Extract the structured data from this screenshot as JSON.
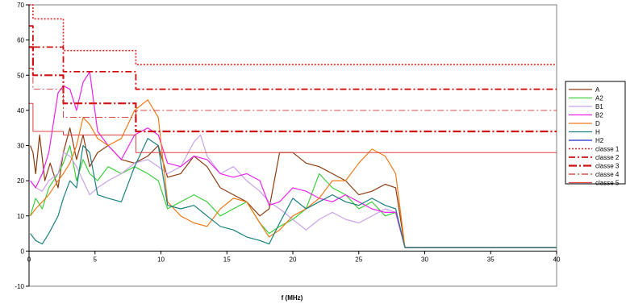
{
  "chart_data": {
    "type": "line",
    "xlabel": "f (MHz)",
    "ylabel": "",
    "xlim": [
      0,
      40
    ],
    "ylim": [
      -10,
      70
    ],
    "x_ticks": [
      "0",
      "5",
      "10",
      "15",
      "20",
      "25",
      "30",
      "35",
      "40"
    ],
    "y_ticks": [
      "-10",
      "0",
      "10",
      "20",
      "30",
      "40",
      "50",
      "60",
      "70"
    ],
    "grid": false,
    "legend_position": "right",
    "series": [
      {
        "name": "A",
        "color": "#8B3A10",
        "style": "solid",
        "x": [
          0.1,
          0.3,
          0.5,
          0.8,
          1.2,
          1.6,
          2.2,
          2.6,
          3.1,
          3.6,
          4.1,
          4.6,
          5.2,
          6.0,
          7.0,
          8.0,
          9.0,
          9.8,
          10.5,
          11.5,
          12.5,
          13.5,
          14.5,
          15.5,
          16.5,
          17.5,
          18.2,
          19.0,
          20.0,
          21.0,
          22.0,
          23.0,
          24.0,
          25.0,
          26.0,
          27.0,
          27.8,
          28.5,
          30,
          35,
          40
        ],
        "y": [
          30,
          28,
          22,
          33,
          20,
          25,
          18,
          28,
          35,
          26,
          33,
          24,
          28,
          30,
          26,
          25,
          27,
          30,
          21,
          22,
          27,
          24,
          18,
          16,
          14,
          10,
          12,
          28,
          28,
          25,
          24,
          22,
          20,
          16,
          17,
          19,
          18,
          1,
          1,
          1,
          1
        ]
      },
      {
        "name": "A2",
        "color": "#3DCF3D",
        "style": "solid",
        "x": [
          0.1,
          0.5,
          1,
          1.5,
          2.2,
          2.6,
          3.1,
          3.6,
          4.1,
          4.6,
          5.2,
          6,
          7,
          8,
          9,
          9.8,
          10.5,
          11.5,
          12.5,
          13.5,
          14.5,
          15.5,
          16.5,
          17.5,
          18.2,
          19,
          20,
          21,
          22,
          23,
          24,
          25,
          26,
          27,
          27.8,
          28.5,
          30,
          35,
          40
        ],
        "y": [
          10,
          15,
          12,
          18,
          22,
          25,
          30,
          20,
          26,
          22,
          20,
          24,
          22,
          24,
          22,
          20,
          12,
          14,
          16,
          14,
          10,
          12,
          14,
          8,
          5,
          7,
          9,
          12,
          22,
          18,
          16,
          12,
          14,
          10,
          11,
          1,
          1,
          1,
          1
        ]
      },
      {
        "name": "B1",
        "color": "#C8A2E8",
        "style": "solid",
        "x": [
          0.1,
          0.5,
          1,
          1.5,
          2.2,
          2.6,
          3.1,
          3.6,
          4.1,
          4.6,
          5.2,
          6,
          7,
          8,
          9,
          9.8,
          10.5,
          11.5,
          12.5,
          13,
          13.5,
          14.5,
          15.5,
          16.5,
          17.5,
          18.2,
          19,
          20,
          21,
          22,
          23,
          24,
          25,
          26,
          27,
          27.8,
          28.5,
          30,
          35,
          40
        ],
        "y": [
          20,
          18,
          17,
          20,
          22,
          28,
          27,
          24,
          20,
          16,
          18,
          20,
          22,
          25,
          26,
          24,
          22,
          24,
          31,
          33,
          27,
          22,
          24,
          20,
          17,
          14,
          12,
          9,
          6,
          9,
          11,
          9,
          8,
          10,
          12,
          11,
          1,
          1,
          1,
          1
        ]
      },
      {
        "name": "B2",
        "color": "#EE22EE",
        "style": "solid",
        "x": [
          0.1,
          0.5,
          1,
          1.5,
          2.2,
          2.6,
          3.1,
          3.6,
          4.1,
          4.6,
          5.2,
          6,
          7,
          8,
          9,
          9.8,
          10.5,
          11.5,
          12.5,
          13.5,
          14.5,
          15.5,
          16.5,
          17.5,
          18.2,
          19,
          20,
          21,
          22,
          23,
          24,
          25,
          26,
          27,
          27.8,
          28.5,
          30,
          35,
          40
        ],
        "y": [
          20,
          18,
          22,
          28,
          45,
          47,
          46,
          40,
          48,
          51,
          34,
          30,
          26,
          33,
          35,
          33,
          25,
          24,
          27,
          26,
          22,
          21,
          22,
          20,
          13,
          14,
          18,
          17,
          15,
          14,
          16,
          14,
          12,
          11,
          11,
          1,
          1,
          1,
          1
        ]
      },
      {
        "name": "D",
        "color": "#F07A1A",
        "style": "solid",
        "x": [
          0.1,
          0.5,
          1,
          1.5,
          2.2,
          2.6,
          3.1,
          3.6,
          4.1,
          4.6,
          5.2,
          6,
          7,
          8,
          9,
          9.8,
          10.5,
          11.5,
          12.5,
          13.5,
          14.5,
          15.5,
          16.5,
          17.5,
          18.2,
          19,
          20,
          21,
          22,
          23,
          24,
          25,
          26,
          27,
          27.8,
          28.5,
          30,
          35,
          40
        ],
        "y": [
          10,
          12,
          14,
          16,
          20,
          22,
          25,
          30,
          38,
          36,
          32,
          30,
          32,
          40,
          43,
          38,
          14,
          10,
          8,
          7,
          12,
          15,
          14,
          8,
          4,
          6,
          10,
          12,
          15,
          20,
          20,
          25,
          29,
          27,
          22,
          1,
          1,
          1,
          1
        ]
      },
      {
        "name": "H",
        "color": "#1A7F7F",
        "style": "solid",
        "x": [
          0.1,
          0.5,
          1,
          1.5,
          2.2,
          2.6,
          3.1,
          3.6,
          4.1,
          4.6,
          5.2,
          6,
          7,
          8,
          9,
          9.8,
          10.5,
          11.5,
          12.5,
          13.5,
          14.5,
          15.5,
          16.5,
          17.5,
          18.2,
          19,
          20,
          21,
          22,
          23,
          24,
          25,
          26,
          27,
          27.8,
          28.5,
          30,
          35,
          40
        ],
        "y": [
          5,
          3,
          2,
          5,
          10,
          15,
          20,
          18,
          30,
          28,
          16,
          15,
          14,
          24,
          32,
          30,
          13,
          12,
          13,
          10,
          7,
          6,
          4,
          3,
          2,
          8,
          15,
          12,
          14,
          16,
          14,
          13,
          15,
          13,
          12,
          1,
          1,
          1,
          1
        ]
      },
      {
        "name": "H2",
        "color": "#1A2BD0",
        "style": "solid",
        "x": [],
        "y": []
      },
      {
        "name": "classe 1",
        "color": "#E02020",
        "style": "dotted",
        "x": [
          0,
          0.3,
          0.3,
          2.6,
          2.6,
          8.1,
          8.1,
          40
        ],
        "y": [
          70,
          70,
          66,
          66,
          57,
          57,
          53,
          53
        ]
      },
      {
        "name": "classe 2",
        "color": "#D01010",
        "style": "dashdot",
        "x": [
          0,
          0.3,
          0.3,
          2.6,
          2.6,
          8.1,
          8.1,
          40
        ],
        "y": [
          64,
          64,
          58,
          58,
          51,
          51,
          46,
          46
        ]
      },
      {
        "name": "classe 3",
        "color": "#D01010",
        "style": "dashdot-heavy",
        "x": [
          0,
          0.3,
          0.3,
          2.6,
          2.6,
          8.1,
          8.1,
          40
        ],
        "y": [
          58,
          58,
          50,
          50,
          42,
          42,
          34,
          34
        ]
      },
      {
        "name": "classe 4",
        "color": "#D03030",
        "style": "dashdot-thin",
        "x": [
          0,
          0.3,
          0.3,
          2.6,
          2.6,
          8.1,
          8.1,
          40
        ],
        "y": [
          52,
          52,
          46,
          46,
          38,
          38,
          40,
          40
        ]
      },
      {
        "name": "classe 5",
        "color": "#E04040",
        "style": "solid-thin",
        "x": [
          0,
          0.3,
          0.3,
          2.6,
          2.6,
          8.1,
          8.1,
          40
        ],
        "y": [
          42,
          42,
          34,
          34,
          33,
          33,
          28,
          28
        ]
      }
    ]
  }
}
